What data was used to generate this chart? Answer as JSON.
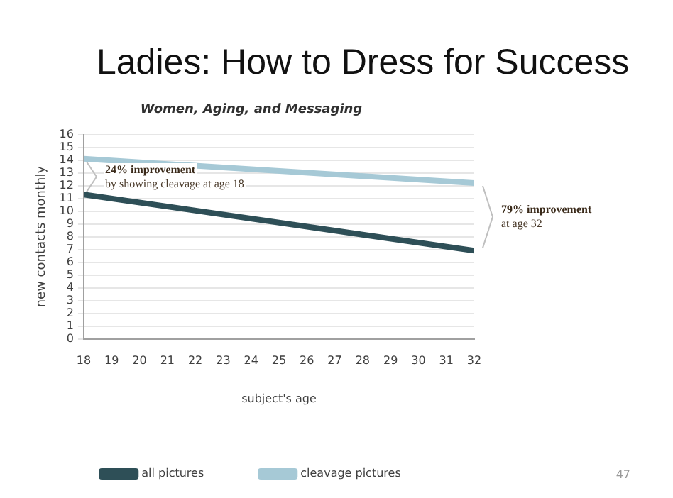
{
  "chart_data": {
    "type": "line",
    "title": "Ladies: How to Dress for Success",
    "subtitle": "Women, Aging, and Messaging",
    "xlabel": "subject's age",
    "ylabel": "new contacts monthly",
    "x": [
      18,
      32
    ],
    "series": [
      {
        "name": "all pictures",
        "color": "#2e4f57",
        "values": [
          11.3,
          6.9
        ]
      },
      {
        "name": "cleavage pictures",
        "color": "#a6c9d6",
        "values": [
          14.1,
          12.2
        ]
      }
    ],
    "xlim": [
      18,
      32
    ],
    "xticks": [
      18,
      19,
      20,
      21,
      22,
      23,
      24,
      25,
      26,
      27,
      28,
      29,
      30,
      31,
      32
    ],
    "ylim": [
      0,
      16
    ],
    "yticks": [
      0,
      1,
      2,
      3,
      4,
      5,
      6,
      7,
      8,
      9,
      10,
      11,
      12,
      13,
      14,
      15,
      16
    ],
    "grid": "y",
    "legend": "bottom",
    "marker": "none",
    "line_style": "solid",
    "annotations": [
      "24% improvement\nby showing cleavage at age 18",
      "79% improvement\nat age 32",
      "47"
    ]
  }
}
